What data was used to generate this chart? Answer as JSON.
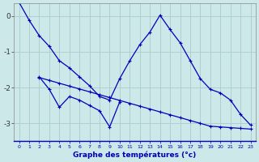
{
  "title": "Graphe des températures (°c)",
  "bg_color": "#cce8e8",
  "line_color": "#0000bb",
  "grid_color": "#aacccc",
  "ylim": [
    -3.5,
    0.35
  ],
  "yticks": [
    0,
    -1,
    -2,
    -3
  ],
  "ytick_labels": [
    "0",
    "-1",
    "-2",
    "-3"
  ],
  "series1_y": [
    0.38,
    -0.12,
    -0.55,
    -0.85,
    -1.25,
    -1.45,
    -1.7,
    -1.95,
    -2.25,
    -2.35,
    -1.75,
    -1.25,
    -0.8,
    -0.45,
    0.02,
    -0.38,
    -0.75,
    -1.25,
    -1.75,
    -2.05,
    -2.15,
    -2.35,
    -2.75,
    -3.05
  ],
  "series2_x": [
    2,
    3,
    4,
    5,
    6,
    7,
    8,
    9,
    10
  ],
  "series2_y": [
    -1.7,
    -2.05,
    -2.55,
    -2.25,
    -2.35,
    -2.5,
    -2.65,
    -3.1,
    -2.4
  ],
  "series3_x": [
    2,
    3,
    4,
    5,
    6,
    7,
    8,
    9,
    10,
    11,
    12,
    13,
    14,
    15,
    16,
    17,
    18,
    19,
    20,
    21,
    22,
    23
  ],
  "series3_y": [
    -1.72,
    -1.8,
    -1.88,
    -1.96,
    -2.04,
    -2.12,
    -2.2,
    -2.28,
    -2.36,
    -2.44,
    -2.52,
    -2.6,
    -2.68,
    -2.76,
    -2.84,
    -2.92,
    -3.0,
    -3.08,
    -3.1,
    -3.12,
    -3.14,
    -3.16
  ]
}
